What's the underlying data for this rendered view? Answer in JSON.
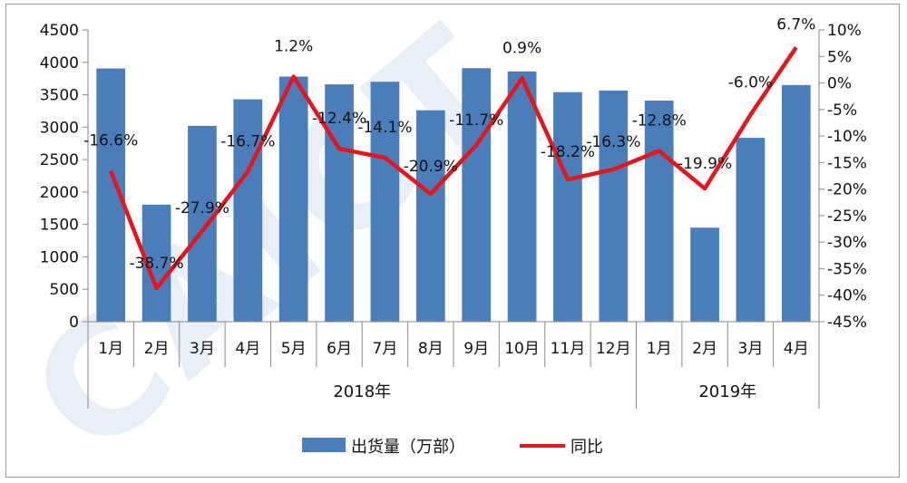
{
  "chart_data": {
    "type": "bar",
    "title": "",
    "xlabel": "",
    "ylabel": "",
    "categories": [
      "1月",
      "2月",
      "3月",
      "4月",
      "5月",
      "6月",
      "7月",
      "8月",
      "9月",
      "10月",
      "11月",
      "12月",
      "1月",
      "2月",
      "3月",
      "4月"
    ],
    "groups": [
      {
        "label": "2018年",
        "count": 12
      },
      {
        "label": "2019年",
        "count": 4
      }
    ],
    "series": [
      {
        "name": "出货量（万部）",
        "type": "bar",
        "axis": "left",
        "color": "#4a7ebb",
        "values": [
          3905,
          1805,
          3020,
          3430,
          3780,
          3660,
          3700,
          3260,
          3910,
          3860,
          3540,
          3565,
          3410,
          1450,
          2835,
          3650
        ]
      },
      {
        "name": "同比",
        "type": "line",
        "axis": "right",
        "color": "#e8141c",
        "values": [
          -16.6,
          -38.7,
          -27.9,
          -16.7,
          1.2,
          -12.4,
          -14.1,
          -20.9,
          -11.7,
          0.9,
          -18.2,
          -16.3,
          -12.8,
          -19.9,
          -6.0,
          6.7
        ],
        "labels": [
          "-16.6%",
          "-38.7%",
          "-27.9%",
          "-16.7%",
          "1.2%",
          "-12.4%",
          "-14.1%",
          "-20.9%",
          "-11.7%",
          "0.9%",
          "-18.2%",
          "-16.3%",
          "-12.8%",
          "-19.9%",
          "-6.0%",
          "6.7%"
        ]
      }
    ],
    "y_left": {
      "min": 0,
      "max": 4500,
      "ticks": [
        "0",
        "500",
        "1000",
        "1500",
        "2000",
        "2500",
        "3000",
        "3500",
        "4000",
        "4500"
      ]
    },
    "y_right": {
      "min": -45,
      "max": 10,
      "ticks": [
        "-45%",
        "-40%",
        "-35%",
        "-30%",
        "-25%",
        "-20%",
        "-15%",
        "-10%",
        "-5%",
        "0%",
        "5%",
        "10%"
      ]
    },
    "legend_position": "bottom",
    "grid": false
  },
  "watermark": "CAICT"
}
